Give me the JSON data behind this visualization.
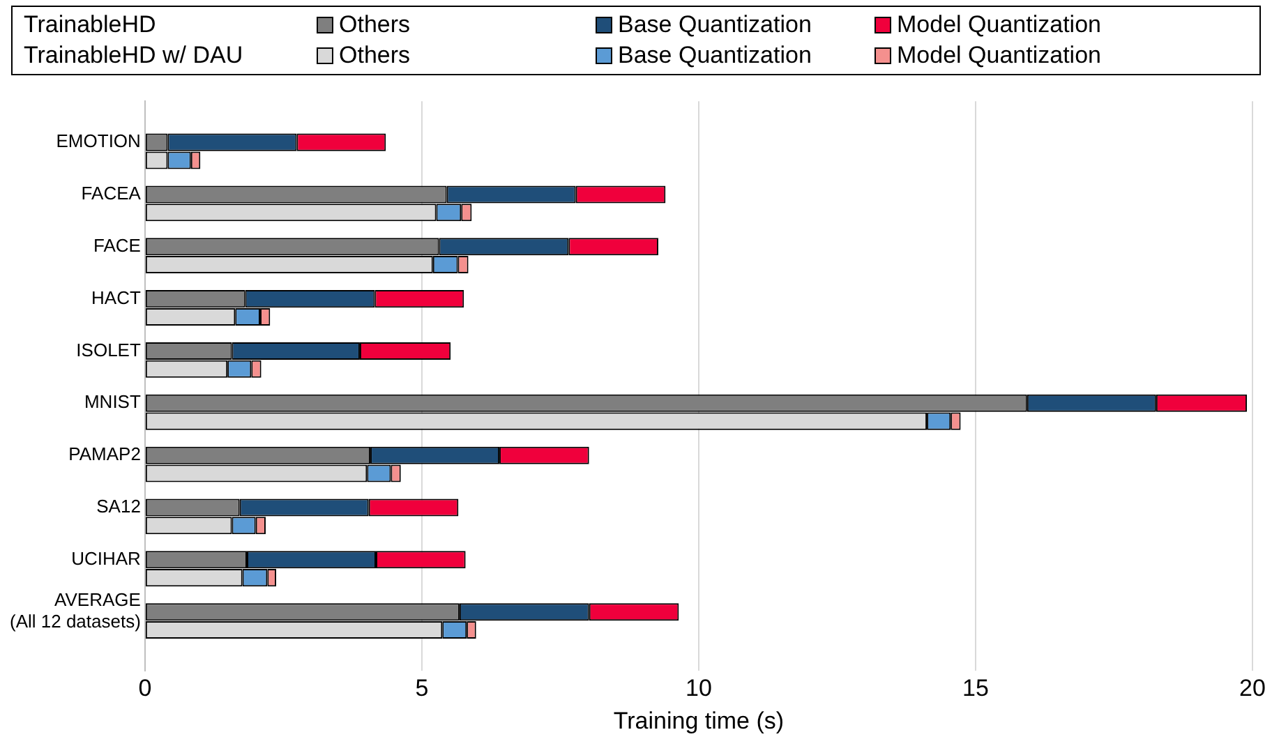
{
  "chart_data": {
    "type": "bar",
    "orientation": "horizontal",
    "stacked": true,
    "xlabel": "Training time (s)",
    "categories": [
      "EMOTION",
      null,
      "FACEA",
      null,
      "FACE",
      null,
      "HACT",
      null,
      "ISOLET",
      null,
      "MNIST",
      null,
      "PAMAP2",
      null,
      "SA12",
      null,
      "UCIHAR",
      null,
      "AVERAGE\n(All 12 datasets)",
      null
    ],
    "series": [
      {
        "name": "Others",
        "color": "#7f7f7f",
        "values": [
          0.41,
          null,
          5.45,
          null,
          5.31,
          null,
          1.81,
          null,
          1.57,
          null,
          15.93,
          null,
          4.07,
          null,
          1.71,
          null,
          1.84,
          null,
          5.68,
          null
        ]
      },
      {
        "name": "Base Quantization",
        "color": "#1f4e79",
        "values": [
          2.33,
          null,
          2.33,
          null,
          2.34,
          null,
          2.34,
          null,
          2.31,
          null,
          2.33,
          null,
          2.33,
          null,
          2.33,
          null,
          2.33,
          null,
          2.34,
          null
        ]
      },
      {
        "name": "Model Quantization",
        "color": "#f0003c",
        "values": [
          1.61,
          null,
          1.62,
          null,
          1.62,
          null,
          1.61,
          null,
          1.64,
          null,
          1.64,
          null,
          1.62,
          null,
          1.62,
          null,
          1.62,
          null,
          1.62,
          null
        ]
      },
      {
        "name": "Others",
        "color": "#d9d9d9",
        "values": [
          null,
          0.41,
          null,
          5.26,
          null,
          5.2,
          null,
          1.63,
          null,
          1.49,
          null,
          14.12,
          null,
          4.01,
          null,
          1.57,
          null,
          1.76,
          null,
          5.37
        ]
      },
      {
        "name": "Base Quantization",
        "color": "#5b9bd5",
        "values": [
          null,
          0.42,
          null,
          0.45,
          null,
          0.45,
          null,
          0.45,
          null,
          0.43,
          null,
          0.43,
          null,
          0.43,
          null,
          0.43,
          null,
          0.45,
          null,
          0.44
        ]
      },
      {
        "name": "Model Quantization",
        "color": "#f4908e",
        "values": [
          null,
          0.17,
          null,
          0.19,
          null,
          0.19,
          null,
          0.18,
          null,
          0.18,
          null,
          0.18,
          null,
          0.18,
          null,
          0.18,
          null,
          0.16,
          null,
          0.17
        ]
      }
    ],
    "annotations": [
      "TrainableHD",
      "TrainableHD w/ DAU"
    ],
    "xlim": [
      0,
      20
    ],
    "xticks": [
      0,
      5,
      10,
      15,
      20
    ],
    "grid": "x",
    "legend": "top"
  }
}
